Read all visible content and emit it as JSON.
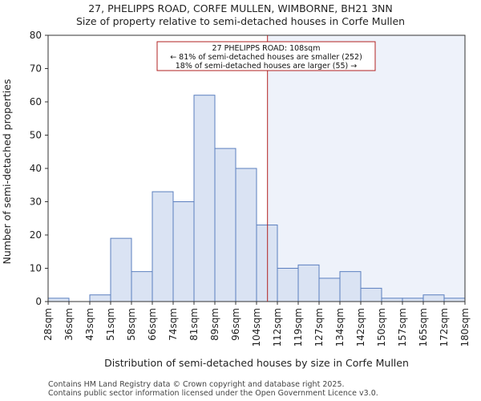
{
  "title_line1": "27, PHELIPPS ROAD, CORFE MULLEN, WIMBORNE, BH21 3NN",
  "title_line2": "Size of property relative to semi-detached houses in Corfe Mullen",
  "footer_line1": "Contains HM Land Registry data © Crown copyright and database right 2025.",
  "footer_line2": "Contains public sector information licensed under the Open Government Licence v3.0.",
  "colors": {
    "bar_fill": "#dae3f3",
    "bar_stroke": "#5b7fbf",
    "highlight_fill": "#eef2fa",
    "marker_line": "#b22222",
    "annotation_border": "#b22222"
  },
  "chart_data": {
    "type": "bar",
    "xlabel": "Distribution of semi-detached houses by size in Corfe Mullen",
    "ylabel": "Number of semi-detached properties",
    "ylim": [
      0,
      80
    ],
    "yticks": [
      0,
      10,
      20,
      30,
      40,
      50,
      60,
      70,
      80
    ],
    "tick_labels": [
      "28sqm",
      "36sqm",
      "43sqm",
      "51sqm",
      "58sqm",
      "66sqm",
      "74sqm",
      "81sqm",
      "89sqm",
      "96sqm",
      "104sqm",
      "112sqm",
      "119sqm",
      "127sqm",
      "134sqm",
      "142sqm",
      "150sqm",
      "157sqm",
      "165sqm",
      "172sqm",
      "180sqm"
    ],
    "values": [
      1,
      0,
      2,
      19,
      9,
      33,
      30,
      62,
      46,
      40,
      23,
      10,
      11,
      7,
      9,
      4,
      1,
      1,
      2,
      1
    ],
    "marker_value": 108,
    "bin_start": 28,
    "bin_end": 180,
    "grid": false,
    "annotation": [
      "27 PHELIPPS ROAD: 108sqm",
      "← 81% of semi-detached houses are smaller (252)",
      "18% of semi-detached houses are larger (55) →"
    ]
  }
}
